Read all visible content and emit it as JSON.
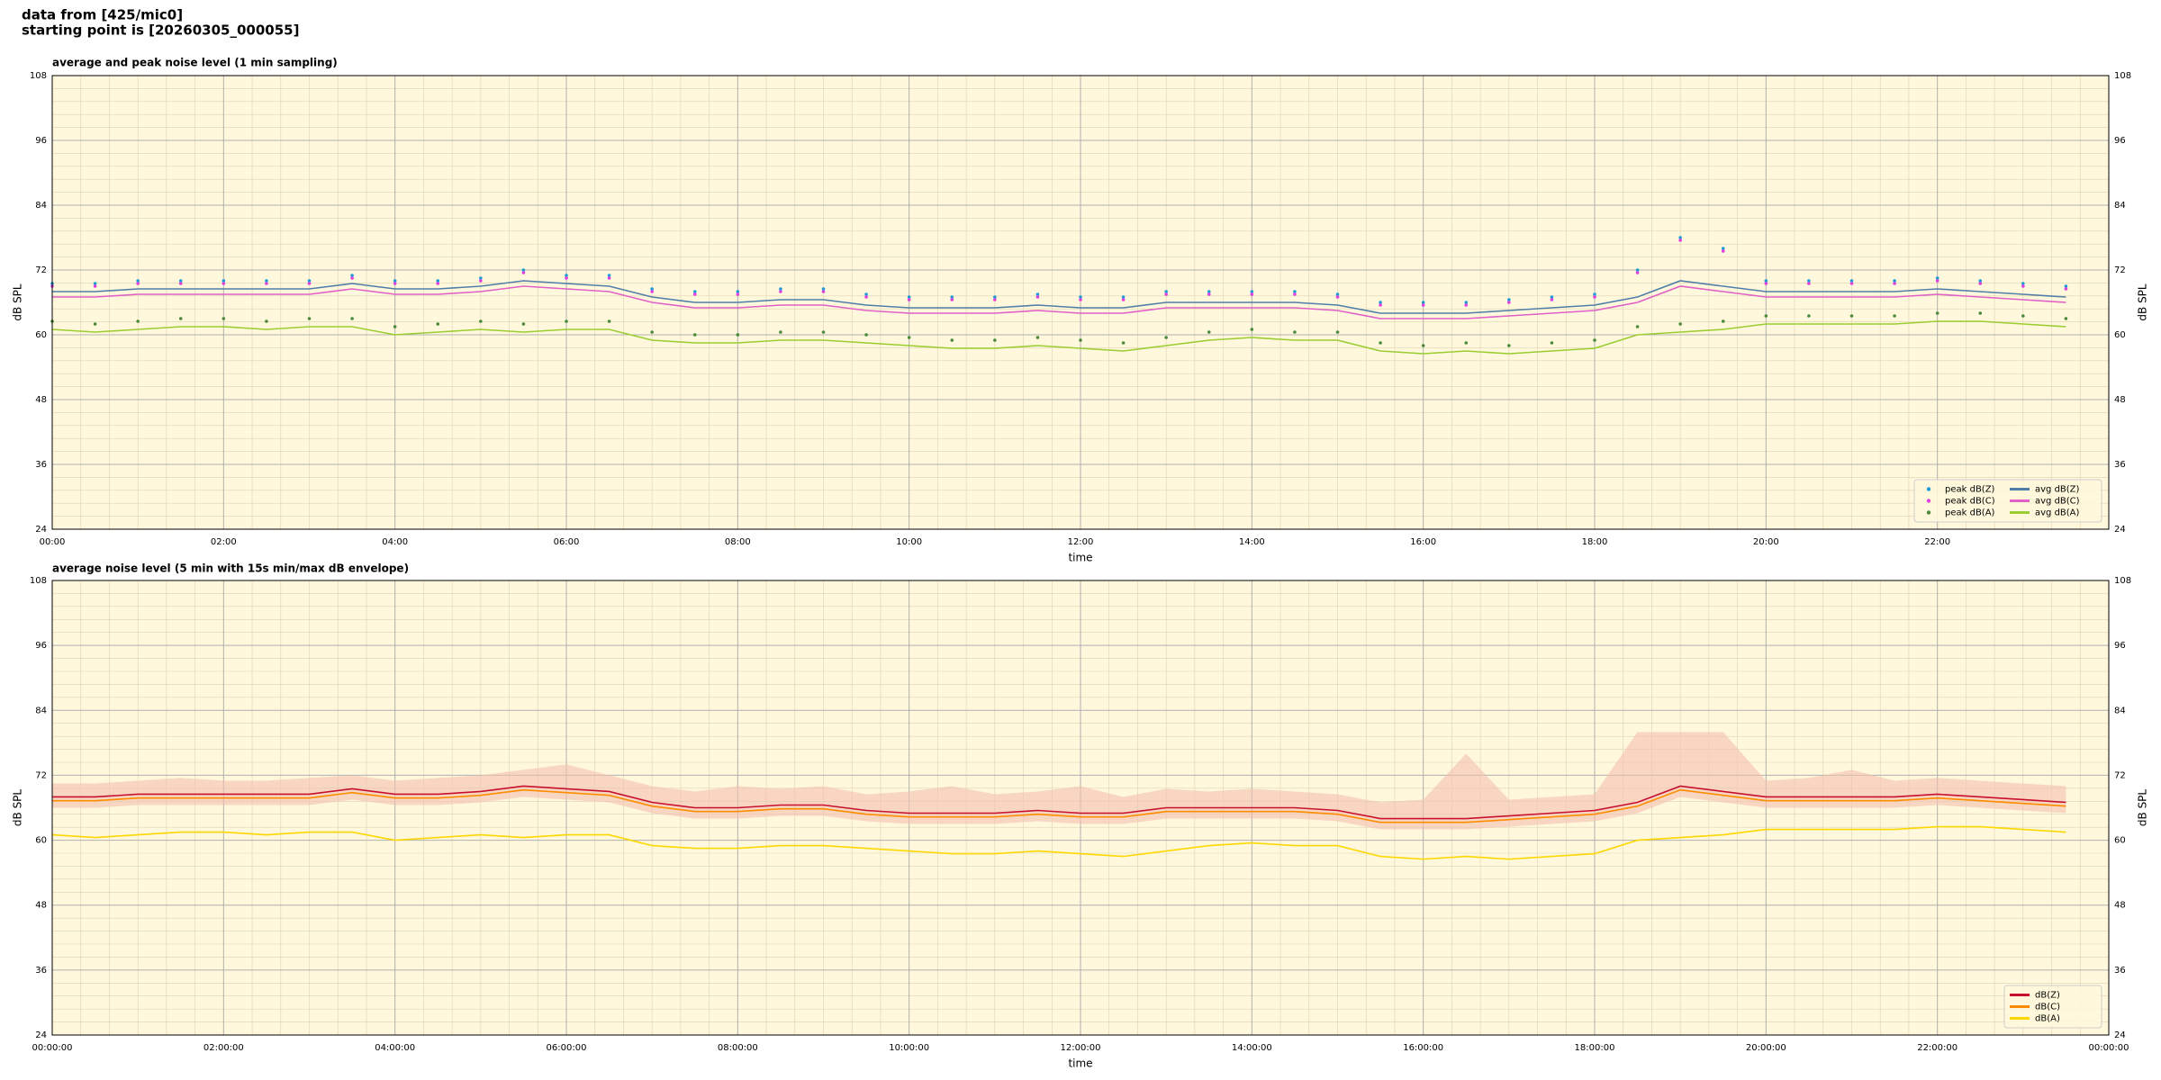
{
  "header": {
    "lines": [
      "data from [425/mic0]",
      "starting point is [20260305_000055]"
    ]
  },
  "chart_data": [
    {
      "type": "line",
      "title": "average and peak noise level (1 min sampling)",
      "xlabel": "time",
      "ylabel": "dB SPL",
      "background": "#fff8dc",
      "grid": true,
      "legend": "lower right",
      "legend_columns": 2,
      "xlim": [
        0,
        24
      ],
      "ylim": [
        24,
        108
      ],
      "xticks": [
        {
          "value": 0,
          "label": "00:00"
        },
        {
          "value": 2,
          "label": "02:00"
        },
        {
          "value": 4,
          "label": "04:00"
        },
        {
          "value": 6,
          "label": "06:00"
        },
        {
          "value": 8,
          "label": "08:00"
        },
        {
          "value": 10,
          "label": "10:00"
        },
        {
          "value": 12,
          "label": "12:00"
        },
        {
          "value": 14,
          "label": "14:00"
        },
        {
          "value": 16,
          "label": "16:00"
        },
        {
          "value": 18,
          "label": "18:00"
        },
        {
          "value": 20,
          "label": "20:00"
        },
        {
          "value": 22,
          "label": "22:00"
        }
      ],
      "yticks": [
        24,
        36,
        48,
        60,
        72,
        84,
        96,
        108
      ],
      "x": [
        0,
        0.5,
        1,
        1.5,
        2,
        2.5,
        3,
        3.5,
        4,
        4.5,
        5,
        5.5,
        6,
        6.5,
        7,
        7.5,
        8,
        8.5,
        9,
        9.5,
        10,
        10.5,
        11,
        11.5,
        12,
        12.5,
        13,
        13.5,
        14,
        14.5,
        15,
        15.5,
        16,
        16.5,
        17,
        17.5,
        18,
        18.5,
        19,
        19.5,
        20,
        20.5,
        21,
        21.5,
        22,
        22.5,
        23,
        23.5
      ],
      "series": [
        {
          "name": "peak dB(Z)",
          "style": "dots",
          "color": "#1f9bd7",
          "values": [
            69.5,
            69.5,
            70,
            70,
            70,
            70,
            70,
            71,
            70,
            70,
            70.5,
            72,
            71,
            71,
            68.5,
            68,
            68,
            68.5,
            68.5,
            67.5,
            67,
            67,
            67,
            67.5,
            67,
            67,
            68,
            68,
            68,
            68,
            67.5,
            66,
            66,
            66,
            66.5,
            67,
            67.5,
            72,
            78,
            76,
            70,
            70,
            70,
            70,
            70.5,
            70,
            69.5,
            69
          ]
        },
        {
          "name": "peak dB(C)",
          "style": "dots",
          "color": "#e040e0",
          "values": [
            69,
            69,
            69.5,
            69.5,
            69.5,
            69.5,
            69.5,
            70.5,
            69.5,
            69.5,
            70,
            71.5,
            70.5,
            70.5,
            68,
            67.5,
            67.5,
            68,
            68,
            67,
            66.5,
            66.5,
            66.5,
            67,
            66.5,
            66.5,
            67.5,
            67.5,
            67.5,
            67.5,
            67,
            65.5,
            65.5,
            65.5,
            66,
            66.5,
            67,
            71.5,
            77.5,
            75.5,
            69.5,
            69.5,
            69.5,
            69.5,
            70,
            69.5,
            69,
            68.5
          ]
        },
        {
          "name": "peak dB(A)",
          "style": "dots",
          "color": "#4a8a3a",
          "values": [
            62.5,
            62,
            62.5,
            63,
            63,
            62.5,
            63,
            63,
            61.5,
            62,
            62.5,
            62,
            62.5,
            62.5,
            60.5,
            60,
            60,
            60.5,
            60.5,
            60,
            59.5,
            59,
            59,
            59.5,
            59,
            58.5,
            59.5,
            60.5,
            61,
            60.5,
            60.5,
            58.5,
            58,
            58.5,
            58,
            58.5,
            59,
            61.5,
            62,
            62.5,
            63.5,
            63.5,
            63.5,
            63.5,
            64,
            64,
            63.5,
            63
          ]
        },
        {
          "name": "avg dB(Z)",
          "style": "line",
          "color": "#4f7fa8",
          "values": [
            68,
            68,
            68.5,
            68.5,
            68.5,
            68.5,
            68.5,
            69.5,
            68.5,
            68.5,
            69,
            70,
            69.5,
            69,
            67,
            66,
            66,
            66.5,
            66.5,
            65.5,
            65,
            65,
            65,
            65.5,
            65,
            65,
            66,
            66,
            66,
            66,
            65.5,
            64,
            64,
            64,
            64.5,
            65,
            65.5,
            67,
            70,
            69,
            68,
            68,
            68,
            68,
            68.5,
            68,
            67.5,
            67
          ]
        },
        {
          "name": "avg dB(C)",
          "style": "line",
          "color": "#e060c8",
          "values": [
            67,
            67,
            67.5,
            67.5,
            67.5,
            67.5,
            67.5,
            68.5,
            67.5,
            67.5,
            68,
            69,
            68.5,
            68,
            66,
            65,
            65,
            65.5,
            65.5,
            64.5,
            64,
            64,
            64,
            64.5,
            64,
            64,
            65,
            65,
            65,
            65,
            64.5,
            63,
            63,
            63,
            63.5,
            64,
            64.5,
            66,
            69,
            68,
            67,
            67,
            67,
            67,
            67.5,
            67,
            66.5,
            66
          ]
        },
        {
          "name": "avg dB(A)",
          "style": "line",
          "color": "#9acd32",
          "values": [
            61,
            60.5,
            61,
            61.5,
            61.5,
            61,
            61.5,
            61.5,
            60,
            60.5,
            61,
            60.5,
            61,
            61,
            59,
            58.5,
            58.5,
            59,
            59,
            58.5,
            58,
            57.5,
            57.5,
            58,
            57.5,
            57,
            58,
            59,
            59.5,
            59,
            59,
            57,
            56.5,
            57,
            56.5,
            57,
            57.5,
            60,
            60.5,
            61,
            62,
            62,
            62,
            62,
            62.5,
            62.5,
            62,
            61.5
          ]
        }
      ]
    },
    {
      "type": "line",
      "title": "average noise level (5 min with 15s min/max dB envelope)",
      "xlabel": "time",
      "ylabel": "dB SPL",
      "background": "#fff8dc",
      "grid": true,
      "legend": "lower right",
      "legend_columns": 1,
      "xlim": [
        0,
        24
      ],
      "ylim": [
        24,
        108
      ],
      "xticks": [
        {
          "value": 0,
          "label": "00:00:00"
        },
        {
          "value": 2,
          "label": "02:00:00"
        },
        {
          "value": 4,
          "label": "04:00:00"
        },
        {
          "value": 6,
          "label": "06:00:00"
        },
        {
          "value": 8,
          "label": "08:00:00"
        },
        {
          "value": 10,
          "label": "10:00:00"
        },
        {
          "value": 12,
          "label": "12:00:00"
        },
        {
          "value": 14,
          "label": "14:00:00"
        },
        {
          "value": 16,
          "label": "16:00:00"
        },
        {
          "value": 18,
          "label": "18:00:00"
        },
        {
          "value": 20,
          "label": "20:00:00"
        },
        {
          "value": 22,
          "label": "22:00:00"
        },
        {
          "value": 24,
          "label": "00:00:00"
        }
      ],
      "yticks": [
        24,
        36,
        48,
        60,
        72,
        84,
        96,
        108
      ],
      "x": [
        0,
        0.5,
        1,
        1.5,
        2,
        2.5,
        3,
        3.5,
        4,
        4.5,
        5,
        5.5,
        6,
        6.5,
        7,
        7.5,
        8,
        8.5,
        9,
        9.5,
        10,
        10.5,
        11,
        11.5,
        12,
        12.5,
        13,
        13.5,
        14,
        14.5,
        15,
        15.5,
        16,
        16.5,
        17,
        17.5,
        18,
        18.5,
        19,
        19.5,
        20,
        20.5,
        21,
        21.5,
        22,
        22.5,
        23,
        23.5
      ],
      "envelope": {
        "color": "#f4c0b0",
        "high": [
          70.5,
          70.5,
          71,
          71.5,
          71,
          71,
          71.5,
          72,
          71,
          71.5,
          72,
          73,
          74,
          72,
          70,
          69,
          70,
          69.5,
          70,
          68.5,
          69,
          70,
          68.5,
          69,
          70,
          68,
          69.5,
          69,
          69.5,
          69,
          68.5,
          67,
          67.5,
          76,
          67.5,
          68,
          68.5,
          80,
          80,
          80,
          71,
          71.5,
          73,
          71,
          71.5,
          71,
          70.5,
          70
        ],
        "low": [
          66,
          66,
          66.5,
          66.5,
          66.5,
          66.5,
          66.5,
          67.5,
          66.5,
          66.5,
          67,
          68,
          67.5,
          67,
          65,
          64,
          64,
          64.5,
          64.5,
          63.5,
          63,
          63,
          63,
          63.5,
          63,
          63,
          64,
          64,
          64,
          64,
          63.5,
          62,
          62,
          62,
          62.5,
          63,
          63.5,
          65,
          68,
          67,
          66,
          66,
          66,
          66,
          66.5,
          66,
          65.5,
          65
        ]
      },
      "series": [
        {
          "name": "dB(Z)",
          "style": "line",
          "color": "#c8102e",
          "values": [
            68,
            68,
            68.5,
            68.5,
            68.5,
            68.5,
            68.5,
            69.5,
            68.5,
            68.5,
            69,
            70,
            69.5,
            69,
            67,
            66,
            66,
            66.5,
            66.5,
            65.5,
            65,
            65,
            65,
            65.5,
            65,
            65,
            66,
            66,
            66,
            66,
            65.5,
            64,
            64,
            64,
            64.5,
            65,
            65.5,
            67,
            70,
            69,
            68,
            68,
            68,
            68,
            68.5,
            68,
            67.5,
            67
          ]
        },
        {
          "name": "dB(C)",
          "style": "line",
          "color": "#ff8c00",
          "values": [
            67.3,
            67.3,
            67.8,
            67.8,
            67.8,
            67.8,
            67.8,
            68.8,
            67.8,
            67.8,
            68.3,
            69.3,
            68.8,
            68.3,
            66.3,
            65.3,
            65.3,
            65.8,
            65.8,
            64.8,
            64.3,
            64.3,
            64.3,
            64.8,
            64.3,
            64.3,
            65.3,
            65.3,
            65.3,
            65.3,
            64.8,
            63.3,
            63.3,
            63.3,
            63.8,
            64.3,
            64.8,
            66.3,
            69.3,
            68.3,
            67.3,
            67.3,
            67.3,
            67.3,
            67.8,
            67.3,
            66.8,
            66.3
          ]
        },
        {
          "name": "dB(A)",
          "style": "line",
          "color": "#ffd700",
          "values": [
            61,
            60.5,
            61,
            61.5,
            61.5,
            61,
            61.5,
            61.5,
            60,
            60.5,
            61,
            60.5,
            61,
            61,
            59,
            58.5,
            58.5,
            59,
            59,
            58.5,
            58,
            57.5,
            57.5,
            58,
            57.5,
            57,
            58,
            59,
            59.5,
            59,
            59,
            57,
            56.5,
            57,
            56.5,
            57,
            57.5,
            60,
            60.5,
            61,
            62,
            62,
            62,
            62,
            62.5,
            62.5,
            62,
            61.5
          ]
        }
      ]
    }
  ]
}
